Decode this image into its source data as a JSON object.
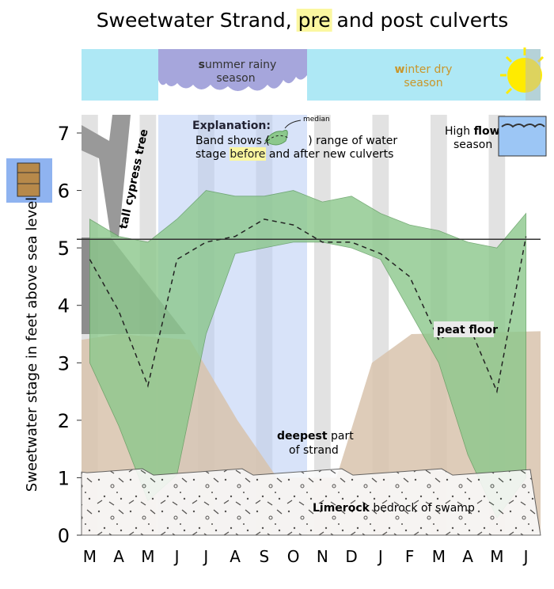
{
  "chart_data": {
    "type": "band",
    "title": {
      "before": "Sweetwater Strand, ",
      "highlight": "pre",
      "after": " and post culverts"
    },
    "ylabel": "Sweetwater stage in feet above sea level",
    "categories": [
      "M",
      "A",
      "M",
      "J",
      "J",
      "A",
      "S",
      "O",
      "N",
      "D",
      "J",
      "F",
      "M",
      "A",
      "M",
      "J"
    ],
    "band": {
      "color": "#8cc88c",
      "upper": [
        5.5,
        5.2,
        5.1,
        5.5,
        6.0,
        5.9,
        5.9,
        6.0,
        5.8,
        5.9,
        5.6,
        5.4,
        5.3,
        5.1,
        5.0,
        5.6
      ],
      "lower": [
        3.0,
        1.9,
        0.6,
        1.05,
        3.5,
        4.9,
        5.0,
        5.1,
        5.1,
        5.0,
        4.8,
        3.9,
        3.0,
        1.4,
        0.3,
        1.0
      ]
    },
    "median": {
      "color": "#222222",
      "values": [
        4.8,
        3.9,
        2.6,
        4.8,
        5.1,
        5.2,
        5.5,
        5.4,
        5.1,
        5.1,
        4.9,
        4.5,
        3.4,
        3.7,
        2.5,
        5.2
      ]
    },
    "ylim": [
      0,
      7
    ],
    "yticks": [
      0,
      1,
      2,
      3,
      4,
      5,
      6,
      7
    ],
    "annotations": {
      "summer": {
        "initial": "s",
        "rest": "ummer rainy",
        "line2": "season"
      },
      "winter": {
        "initial": "w",
        "rest": "inter dry",
        "line2": "season"
      },
      "explanation": {
        "heading": "Explanation:",
        "line2a": "Band shows (",
        "line2b": " ) range of water",
        "line3a": "stage ",
        "line3b": "before",
        "line3c": " and after new culverts",
        "median": "median"
      },
      "high_flow": {
        "a": "High ",
        "b": "flow",
        "line2": "season"
      },
      "tree": "tall cypress tree",
      "peat": "peat floor",
      "deepest": {
        "bold": "deepest",
        "rest": " part",
        "line2": "of strand"
      },
      "limerock": {
        "bold": "Limerock",
        "rest": " bedrock of swamp"
      }
    }
  }
}
